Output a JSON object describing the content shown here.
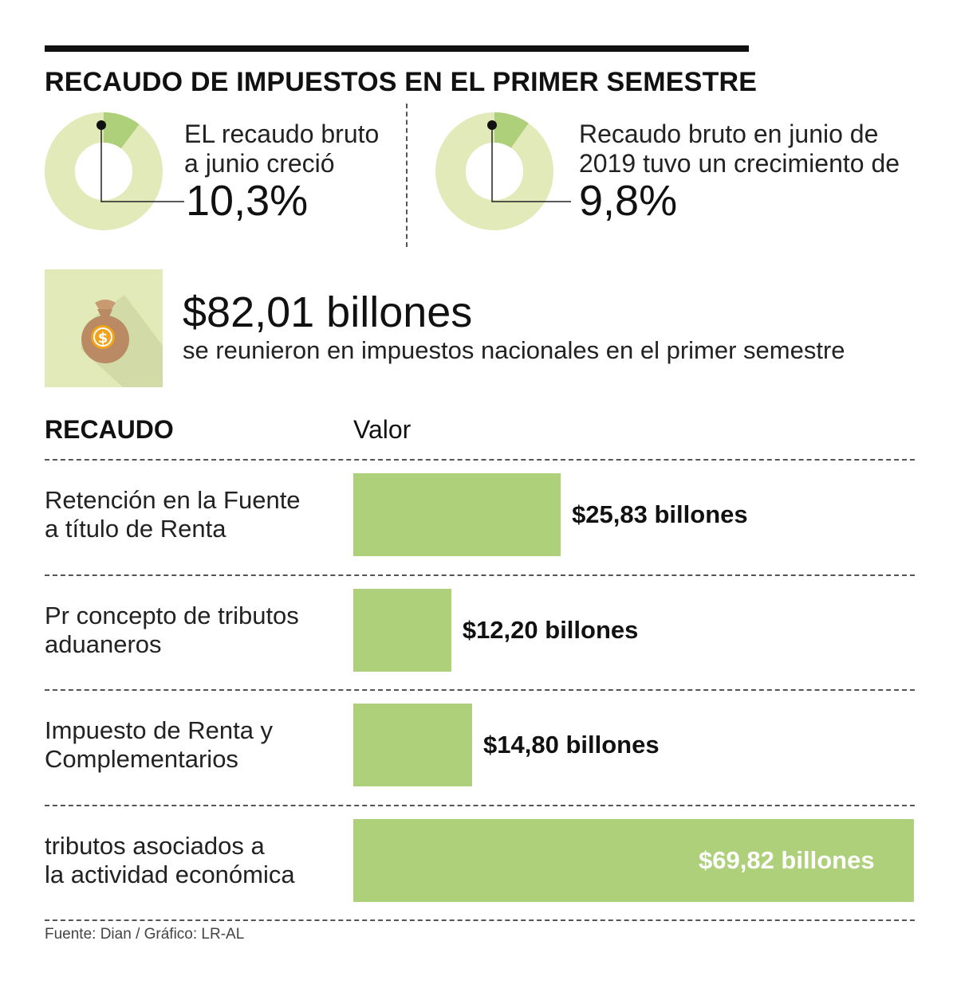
{
  "title": "RECAUDO DE IMPUESTOS EN EL PRIMER SEMESTRE",
  "colors": {
    "bar": "#aed07a",
    "donut_track": "#e2eab9",
    "donut_slice": "#aed07a",
    "text": "#222222",
    "icon_bg": "#e2eab9"
  },
  "stats": [
    {
      "text_line1": "EL recaudo bruto",
      "text_line2": "a junio creció",
      "value": "10,3%",
      "percent": 10.3
    },
    {
      "text_line1": "Recaudo bruto en junio de",
      "text_line2": "2019 tuvo un crecimiento de",
      "value": "9,8%",
      "percent": 9.8
    }
  ],
  "total": {
    "icon": "money-bag-icon",
    "amount": "$82,01 billones",
    "caption": "se reunieron en impuestos nacionales en el primer semestre"
  },
  "table": {
    "col1": "RECAUDO",
    "col2": "Valor"
  },
  "chart_data": {
    "type": "bar",
    "orientation": "horizontal",
    "unit": "billones",
    "categories": [
      "Retención en la Fuente\na título de Renta",
      "Pr concepto de tributos\naduaneros",
      "Impuesto de Renta y\nComplementarios",
      " tributos asociados a\nla actividad económica"
    ],
    "values": [
      25.83,
      12.2,
      14.8,
      69.82
    ],
    "value_labels": [
      "$25,83 billones",
      "$12,20 billones",
      "$14,80 billones",
      "$69,82 billones"
    ],
    "xlim": [
      0,
      69.82
    ]
  },
  "source": "Fuente: Dian / Gráfico: LR-AL"
}
